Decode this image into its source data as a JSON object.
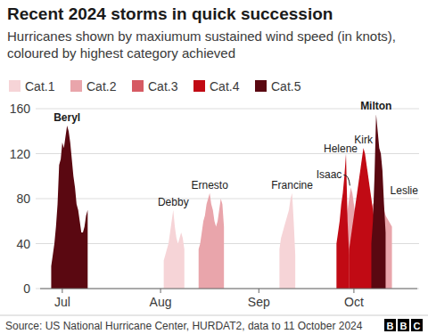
{
  "chart_data": {
    "type": "area",
    "title": "Recent 2024 storms in quick succession",
    "subtitle": "Hurricanes shown by maxiumum sustained wind speed (in knots), coloured by highest category achieved",
    "source": "Source: US National Hurricane Center, HURDAT2, data to 11 October 2024",
    "logo": "BBC",
    "color_key": [
      {
        "label": "Cat.1",
        "color": "#f6d4d7"
      },
      {
        "label": "Cat.2",
        "color": "#e9a5ab"
      },
      {
        "label": "Cat.3",
        "color": "#d65a63"
      },
      {
        "label": "Cat.4",
        "color": "#c10a14"
      },
      {
        "label": "Cat.5",
        "color": "#5a0811"
      }
    ],
    "xlim": [
      176,
      295
    ],
    "xticks": [
      {
        "value": 183,
        "label": "Jul"
      },
      {
        "value": 214,
        "label": "Aug"
      },
      {
        "value": 245,
        "label": "Sep"
      },
      {
        "value": 275,
        "label": "Oct"
      }
    ],
    "ylim": [
      0,
      160
    ],
    "yticks": [
      0,
      40,
      80,
      120,
      160
    ],
    "grid": true,
    "series": [
      {
        "name": "Beryl",
        "color": "#5a0811",
        "x": [
          179.5,
          180,
          180.5,
          181,
          181.5,
          182,
          182.5,
          183,
          183.5,
          184,
          184.5,
          185,
          185.5,
          186,
          186.5,
          187,
          187.5,
          188,
          188.5,
          189,
          189.5,
          190,
          190.5,
          191
        ],
        "values": [
          20,
          30,
          40,
          55,
          75,
          110,
          115,
          130,
          125,
          135,
          145,
          140,
          130,
          115,
          100,
          90,
          75,
          70,
          60,
          50,
          50,
          55,
          65,
          70
        ]
      },
      {
        "name": "Debby",
        "color": "#f6d4d7",
        "x": [
          215,
          215.5,
          216,
          216.5,
          217,
          217.5,
          218,
          218.5,
          219,
          219.5,
          220,
          220.5,
          221,
          221.5
        ],
        "values": [
          25,
          30,
          35,
          40,
          50,
          60,
          70,
          55,
          45,
          40,
          45,
          50,
          45,
          35
        ]
      },
      {
        "name": "Ernesto",
        "color": "#e9a5ab",
        "x": [
          226,
          226.5,
          227,
          227.5,
          228,
          228.5,
          229,
          229.5,
          230,
          230.5,
          231,
          231.5,
          232,
          232.5,
          233,
          233.5,
          234
        ],
        "values": [
          35,
          40,
          50,
          60,
          65,
          75,
          80,
          85,
          75,
          70,
          60,
          55,
          60,
          70,
          80,
          75,
          55
        ]
      },
      {
        "name": "Francine",
        "color": "#f6d4d7",
        "x": [
          251.5,
          252,
          252.5,
          253,
          253.5,
          254,
          254.5,
          255,
          255.5,
          256,
          256.5
        ],
        "values": [
          35,
          45,
          50,
          55,
          60,
          65,
          70,
          80,
          85,
          60,
          30
        ]
      },
      {
        "name": "Helene",
        "color": "#c10a14",
        "x": [
          269.5,
          270,
          270.5,
          271,
          271.5,
          272,
          272.5,
          273,
          273.5
        ],
        "values": [
          40,
          50,
          60,
          75,
          85,
          100,
          120,
          60,
          30
        ]
      },
      {
        "name": "Isaac",
        "color": "#e9a5ab",
        "x": [
          271.5,
          272,
          272.5,
          273,
          273.5,
          274,
          274.5,
          275,
          275.5,
          276
        ],
        "values": [
          40,
          50,
          60,
          70,
          80,
          90,
          85,
          75,
          65,
          55
        ]
      },
      {
        "name": "Kirk",
        "color": "#c10a14",
        "x": [
          273.5,
          274,
          274.5,
          275,
          275.5,
          276,
          276.5,
          277,
          277.5,
          278,
          278.5,
          279,
          279.5,
          280,
          280.5,
          281,
          281.5
        ],
        "values": [
          35,
          45,
          55,
          65,
          75,
          85,
          95,
          105,
          115,
          125,
          120,
          110,
          100,
          90,
          80,
          70,
          60
        ]
      },
      {
        "name": "Leslie",
        "color": "#e9a5ab",
        "x": [
          276,
          277,
          278,
          279,
          280,
          281,
          282,
          283,
          284,
          285,
          286,
          287
        ],
        "values": [
          35,
          45,
          55,
          65,
          70,
          75,
          80,
          85,
          75,
          65,
          60,
          55
        ]
      },
      {
        "name": "Milton",
        "color": "#5a0811",
        "x": [
          280.5,
          281,
          281.5,
          282,
          282.5,
          283,
          283.5,
          284,
          284.5,
          285
        ],
        "values": [
          40,
          60,
          100,
          155,
          140,
          125,
          120,
          105,
          75,
          50
        ]
      }
    ]
  }
}
